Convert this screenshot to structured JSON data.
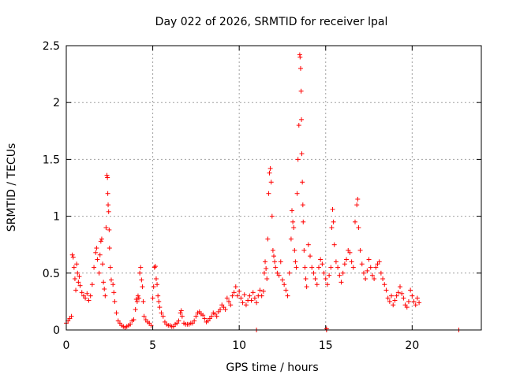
{
  "chart_data": {
    "type": "scatter",
    "title": "Day 022 of 2026, SRMTID for receiver lpal",
    "xlabel": "GPS time / hours",
    "ylabel": "SRMTID / TECUs",
    "xlim": [
      0,
      24
    ],
    "ylim": [
      0,
      2.5
    ],
    "xticks": [
      0,
      5,
      10,
      15,
      20
    ],
    "xtick_labels": [
      "0",
      "5",
      "10",
      "15",
      "20"
    ],
    "yticks": [
      0,
      0.5,
      1,
      1.5,
      2,
      2.5
    ],
    "ytick_labels": [
      "0",
      "0.5",
      "1",
      "1.5",
      "2",
      "2.5"
    ],
    "grid": true,
    "marker": "+",
    "color": "#ff0000",
    "series": [
      {
        "name": "SRMTID",
        "points": [
          [
            0.0,
            0.06
          ],
          [
            0.1,
            0.08
          ],
          [
            0.2,
            0.1
          ],
          [
            0.3,
            0.12
          ],
          [
            0.35,
            0.66
          ],
          [
            0.4,
            0.64
          ],
          [
            0.45,
            0.55
          ],
          [
            0.5,
            0.45
          ],
          [
            0.55,
            0.35
          ],
          [
            0.6,
            0.58
          ],
          [
            0.65,
            0.5
          ],
          [
            0.7,
            0.42
          ],
          [
            0.75,
            0.47
          ],
          [
            0.8,
            0.39
          ],
          [
            0.9,
            0.33
          ],
          [
            1.0,
            0.3
          ],
          [
            1.1,
            0.28
          ],
          [
            1.2,
            0.32
          ],
          [
            1.3,
            0.26
          ],
          [
            1.4,
            0.3
          ],
          [
            1.5,
            0.4
          ],
          [
            1.6,
            0.55
          ],
          [
            1.7,
            0.68
          ],
          [
            1.75,
            0.72
          ],
          [
            1.8,
            0.62
          ],
          [
            1.9,
            0.5
          ],
          [
            1.95,
            0.66
          ],
          [
            2.0,
            0.78
          ],
          [
            2.05,
            0.8
          ],
          [
            2.1,
            0.58
          ],
          [
            2.15,
            0.42
          ],
          [
            2.2,
            0.36
          ],
          [
            2.25,
            0.3
          ],
          [
            2.3,
            0.9
          ],
          [
            2.35,
            1.36
          ],
          [
            2.38,
            1.34
          ],
          [
            2.4,
            1.2
          ],
          [
            2.42,
            1.1
          ],
          [
            2.45,
            1.04
          ],
          [
            2.48,
            0.88
          ],
          [
            2.5,
            0.72
          ],
          [
            2.55,
            0.55
          ],
          [
            2.6,
            0.44
          ],
          [
            2.7,
            0.4
          ],
          [
            2.75,
            0.33
          ],
          [
            2.8,
            0.25
          ],
          [
            2.9,
            0.15
          ],
          [
            3.0,
            0.08
          ],
          [
            3.1,
            0.06
          ],
          [
            3.2,
            0.04
          ],
          [
            3.3,
            0.03
          ],
          [
            3.4,
            0.02
          ],
          [
            3.5,
            0.03
          ],
          [
            3.6,
            0.04
          ],
          [
            3.7,
            0.05
          ],
          [
            3.8,
            0.08
          ],
          [
            3.9,
            0.09
          ],
          [
            4.0,
            0.18
          ],
          [
            4.05,
            0.27
          ],
          [
            4.1,
            0.25
          ],
          [
            4.15,
            0.3
          ],
          [
            4.2,
            0.28
          ],
          [
            4.25,
            0.5
          ],
          [
            4.3,
            0.55
          ],
          [
            4.35,
            0.44
          ],
          [
            4.4,
            0.38
          ],
          [
            4.45,
            0.25
          ],
          [
            4.5,
            0.12
          ],
          [
            4.6,
            0.09
          ],
          [
            4.7,
            0.07
          ],
          [
            4.8,
            0.06
          ],
          [
            4.9,
            0.04
          ],
          [
            5.0,
            0.28
          ],
          [
            5.05,
            0.38
          ],
          [
            5.1,
            0.55
          ],
          [
            5.15,
            0.56
          ],
          [
            5.2,
            0.45
          ],
          [
            5.25,
            0.4
          ],
          [
            5.3,
            0.3
          ],
          [
            5.35,
            0.25
          ],
          [
            5.4,
            0.2
          ],
          [
            5.5,
            0.15
          ],
          [
            5.6,
            0.12
          ],
          [
            5.7,
            0.07
          ],
          [
            5.8,
            0.05
          ],
          [
            5.9,
            0.04
          ],
          [
            6.0,
            0.04
          ],
          [
            6.1,
            0.03
          ],
          [
            6.2,
            0.03
          ],
          [
            6.3,
            0.05
          ],
          [
            6.4,
            0.06
          ],
          [
            6.5,
            0.08
          ],
          [
            6.6,
            0.15
          ],
          [
            6.65,
            0.17
          ],
          [
            6.7,
            0.12
          ],
          [
            6.8,
            0.06
          ],
          [
            6.9,
            0.05
          ],
          [
            7.0,
            0.05
          ],
          [
            7.1,
            0.05
          ],
          [
            7.2,
            0.06
          ],
          [
            7.3,
            0.06
          ],
          [
            7.4,
            0.08
          ],
          [
            7.5,
            0.12
          ],
          [
            7.6,
            0.15
          ],
          [
            7.7,
            0.16
          ],
          [
            7.8,
            0.14
          ],
          [
            7.9,
            0.13
          ],
          [
            8.0,
            0.1
          ],
          [
            8.1,
            0.07
          ],
          [
            8.2,
            0.08
          ],
          [
            8.3,
            0.1
          ],
          [
            8.4,
            0.12
          ],
          [
            8.5,
            0.15
          ],
          [
            8.6,
            0.14
          ],
          [
            8.7,
            0.12
          ],
          [
            8.8,
            0.16
          ],
          [
            8.9,
            0.18
          ],
          [
            9.0,
            0.22
          ],
          [
            9.1,
            0.2
          ],
          [
            9.2,
            0.18
          ],
          [
            9.3,
            0.28
          ],
          [
            9.4,
            0.25
          ],
          [
            9.5,
            0.22
          ],
          [
            9.6,
            0.3
          ],
          [
            9.7,
            0.33
          ],
          [
            9.8,
            0.38
          ],
          [
            9.9,
            0.3
          ],
          [
            10.0,
            0.34
          ],
          [
            10.1,
            0.28
          ],
          [
            10.2,
            0.24
          ],
          [
            10.3,
            0.31
          ],
          [
            10.4,
            0.22
          ],
          [
            10.5,
            0.26
          ],
          [
            10.6,
            0.3
          ],
          [
            10.7,
            0.26
          ],
          [
            10.8,
            0.33
          ],
          [
            10.9,
            0.28
          ],
          [
            11.0,
            0.24
          ],
          [
            11.1,
            0.3
          ],
          [
            11.2,
            0.35
          ],
          [
            11.3,
            0.3
          ],
          [
            11.4,
            0.34
          ],
          [
            11.45,
            0.5
          ],
          [
            11.5,
            0.6
          ],
          [
            11.55,
            0.54
          ],
          [
            11.6,
            0.45
          ],
          [
            11.65,
            0.8
          ],
          [
            11.7,
            1.2
          ],
          [
            11.75,
            1.38
          ],
          [
            11.8,
            1.42
          ],
          [
            11.85,
            1.3
          ],
          [
            11.9,
            1.0
          ],
          [
            11.95,
            0.7
          ],
          [
            12.0,
            0.65
          ],
          [
            12.05,
            0.6
          ],
          [
            12.1,
            0.55
          ],
          [
            12.2,
            0.5
          ],
          [
            12.3,
            0.48
          ],
          [
            12.4,
            0.6
          ],
          [
            12.5,
            0.44
          ],
          [
            12.6,
            0.4
          ],
          [
            12.7,
            0.35
          ],
          [
            12.8,
            0.3
          ],
          [
            12.9,
            0.5
          ],
          [
            13.0,
            0.8
          ],
          [
            13.05,
            1.05
          ],
          [
            13.1,
            0.95
          ],
          [
            13.15,
            0.9
          ],
          [
            13.2,
            0.7
          ],
          [
            13.25,
            0.6
          ],
          [
            13.3,
            0.55
          ],
          [
            13.35,
            1.2
          ],
          [
            13.4,
            1.5
          ],
          [
            13.45,
            1.8
          ],
          [
            13.5,
            2.42
          ],
          [
            13.52,
            2.4
          ],
          [
            13.55,
            2.3
          ],
          [
            13.58,
            2.1
          ],
          [
            13.6,
            1.85
          ],
          [
            13.62,
            1.55
          ],
          [
            13.65,
            1.3
          ],
          [
            13.68,
            1.1
          ],
          [
            13.7,
            0.95
          ],
          [
            13.75,
            0.7
          ],
          [
            13.8,
            0.55
          ],
          [
            13.85,
            0.45
          ],
          [
            13.9,
            0.38
          ],
          [
            14.0,
            0.75
          ],
          [
            14.1,
            0.65
          ],
          [
            14.2,
            0.55
          ],
          [
            14.3,
            0.5
          ],
          [
            14.4,
            0.45
          ],
          [
            14.5,
            0.4
          ],
          [
            14.6,
            0.55
          ],
          [
            14.7,
            0.62
          ],
          [
            14.8,
            0.58
          ],
          [
            14.9,
            0.5
          ],
          [
            15.0,
            0.45
          ],
          [
            15.05,
            0.01
          ],
          [
            15.1,
            0.4
          ],
          [
            15.2,
            0.48
          ],
          [
            15.3,
            0.55
          ],
          [
            15.35,
            0.9
          ],
          [
            15.4,
            1.06
          ],
          [
            15.45,
            0.95
          ],
          [
            15.5,
            0.75
          ],
          [
            15.6,
            0.6
          ],
          [
            15.7,
            0.55
          ],
          [
            15.8,
            0.48
          ],
          [
            15.9,
            0.42
          ],
          [
            16.0,
            0.5
          ],
          [
            16.1,
            0.58
          ],
          [
            16.2,
            0.62
          ],
          [
            16.3,
            0.7
          ],
          [
            16.4,
            0.68
          ],
          [
            16.5,
            0.6
          ],
          [
            16.6,
            0.55
          ],
          [
            16.7,
            0.95
          ],
          [
            16.8,
            1.1
          ],
          [
            16.85,
            1.15
          ],
          [
            16.9,
            0.9
          ],
          [
            17.0,
            0.7
          ],
          [
            17.1,
            0.58
          ],
          [
            17.2,
            0.5
          ],
          [
            17.3,
            0.45
          ],
          [
            17.4,
            0.52
          ],
          [
            17.5,
            0.62
          ],
          [
            17.6,
            0.55
          ],
          [
            17.7,
            0.48
          ],
          [
            17.8,
            0.45
          ],
          [
            17.9,
            0.55
          ],
          [
            18.0,
            0.58
          ],
          [
            18.1,
            0.6
          ],
          [
            18.2,
            0.5
          ],
          [
            18.3,
            0.45
          ],
          [
            18.4,
            0.4
          ],
          [
            18.5,
            0.35
          ],
          [
            18.6,
            0.28
          ],
          [
            18.7,
            0.25
          ],
          [
            18.8,
            0.3
          ],
          [
            18.9,
            0.22
          ],
          [
            19.0,
            0.26
          ],
          [
            19.1,
            0.3
          ],
          [
            19.2,
            0.33
          ],
          [
            19.3,
            0.38
          ],
          [
            19.4,
            0.32
          ],
          [
            19.5,
            0.28
          ],
          [
            19.6,
            0.22
          ],
          [
            19.7,
            0.2
          ],
          [
            19.8,
            0.25
          ],
          [
            19.9,
            0.35
          ],
          [
            20.0,
            0.3
          ],
          [
            20.1,
            0.25
          ],
          [
            20.2,
            0.22
          ],
          [
            20.3,
            0.28
          ],
          [
            20.4,
            0.24
          ],
          [
            11.0,
            0.0
          ],
          [
            15.05,
            0.0
          ],
          [
            22.7,
            0.0
          ]
        ]
      }
    ]
  }
}
